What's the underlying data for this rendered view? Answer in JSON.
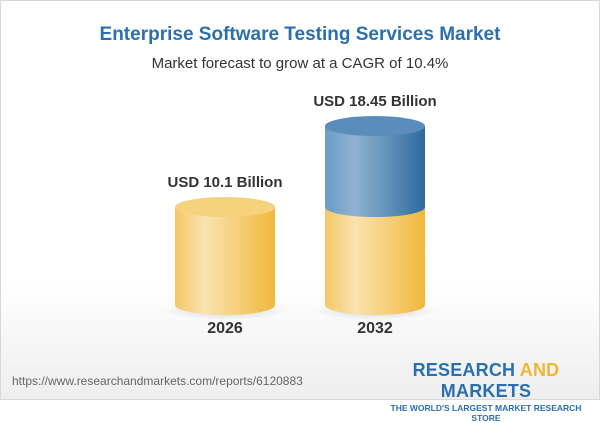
{
  "title": "Enterprise Software Testing Services Market",
  "subtitle": "Market forecast to grow at a CAGR of 10.4%",
  "footer": {
    "url": "https://www.researchandmarkets.com/reports/6120883",
    "logo_part1": "RESEARCH ",
    "logo_part2": "AND",
    "logo_part3": " MARKETS",
    "tagline": "THE WORLD'S LARGEST MARKET RESEARCH STORE"
  },
  "colors": {
    "title": "#2a6fae",
    "base": "#f2c55c",
    "growth": "#4a83b5"
  },
  "chart_data": {
    "type": "bar",
    "title": "Enterprise Software Testing Services Market",
    "subtitle": "Market forecast to grow at a CAGR of 10.4%",
    "categories": [
      "2026",
      "2032"
    ],
    "values": [
      10.1,
      18.45
    ],
    "unit": "USD Billion",
    "data_labels": [
      "USD 10.1 Billion",
      "USD 18.45 Billion"
    ],
    "cagr": "10.4%"
  }
}
